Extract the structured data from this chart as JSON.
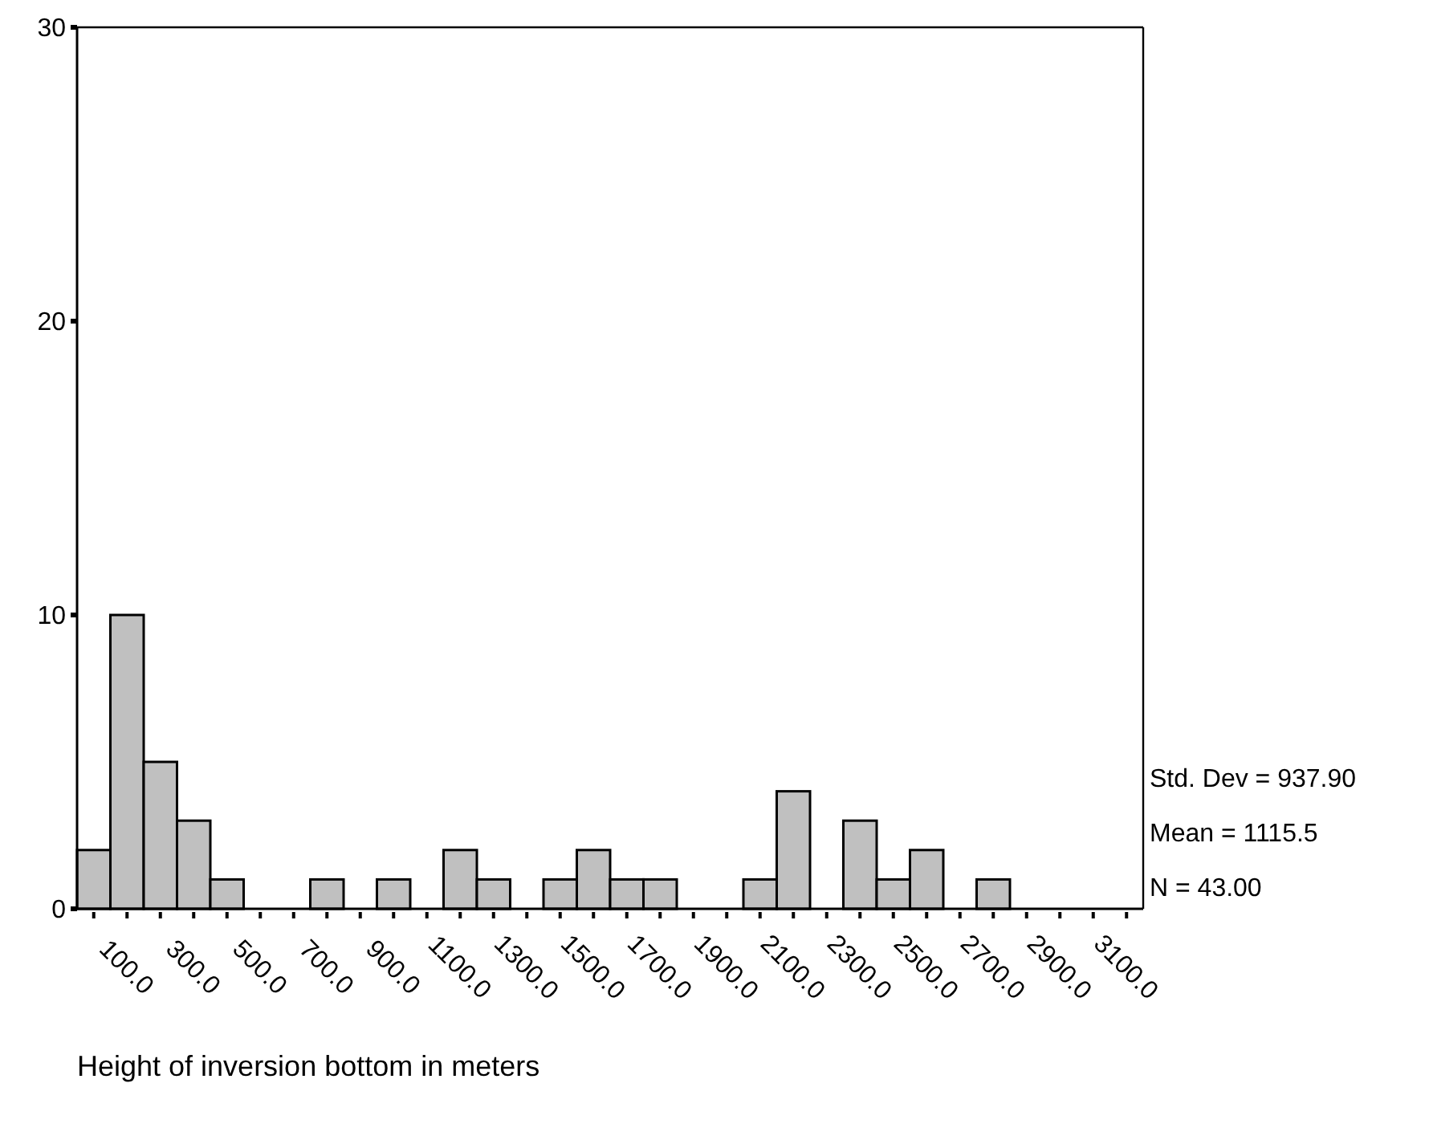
{
  "chart_data": {
    "type": "histogram",
    "xlabel": "Height of inversion bottom in meters",
    "bins": [
      -50,
      50,
      150,
      250,
      350,
      450,
      550,
      650,
      750,
      850,
      950,
      1050,
      1150,
      1250,
      1350,
      1450,
      1550,
      1650,
      1750,
      1850,
      1950,
      2050,
      2150,
      2250,
      2350,
      2450,
      2550,
      2650,
      2750,
      2850,
      2950,
      3050,
      3150
    ],
    "values": [
      2,
      10,
      5,
      3,
      1,
      0,
      0,
      1,
      0,
      1,
      0,
      2,
      1,
      0,
      1,
      2,
      1,
      1,
      0,
      0,
      1,
      4,
      0,
      3,
      1,
      2,
      0,
      1,
      0,
      0,
      0,
      0
    ],
    "color": "#c0c0c0",
    "xlim": [
      -50,
      3150
    ],
    "ylim": [
      0,
      30
    ],
    "yticks": [
      0,
      10,
      20,
      30
    ],
    "xticks": [
      {
        "value": 0,
        "label": null
      },
      {
        "value": 100,
        "label": "100.0"
      },
      {
        "value": 200,
        "label": null
      },
      {
        "value": 300,
        "label": "300.0"
      },
      {
        "value": 400,
        "label": null
      },
      {
        "value": 500,
        "label": "500.0"
      },
      {
        "value": 600,
        "label": null
      },
      {
        "value": 700,
        "label": "700.0"
      },
      {
        "value": 800,
        "label": null
      },
      {
        "value": 900,
        "label": "900.0"
      },
      {
        "value": 1000,
        "label": null
      },
      {
        "value": 1100,
        "label": "1100.0"
      },
      {
        "value": 1200,
        "label": null
      },
      {
        "value": 1300,
        "label": "1300.0"
      },
      {
        "value": 1400,
        "label": null
      },
      {
        "value": 1500,
        "label": "1500.0"
      },
      {
        "value": 1600,
        "label": null
      },
      {
        "value": 1700,
        "label": "1700.0"
      },
      {
        "value": 1800,
        "label": null
      },
      {
        "value": 1900,
        "label": "1900.0"
      },
      {
        "value": 2000,
        "label": null
      },
      {
        "value": 2100,
        "label": "2100.0"
      },
      {
        "value": 2200,
        "label": null
      },
      {
        "value": 2300,
        "label": "2300.0"
      },
      {
        "value": 2400,
        "label": null
      },
      {
        "value": 2500,
        "label": "2500.0"
      },
      {
        "value": 2600,
        "label": null
      },
      {
        "value": 2700,
        "label": "2700.0"
      },
      {
        "value": 2800,
        "label": null
      },
      {
        "value": 2900,
        "label": "2900.0"
      },
      {
        "value": 3000,
        "label": null
      },
      {
        "value": 3100,
        "label": "3100.0"
      }
    ],
    "annotations": [
      "Std. Dev = 937.90",
      "Mean = 1115.5",
      "N = 43.00"
    ],
    "grid": false
  }
}
